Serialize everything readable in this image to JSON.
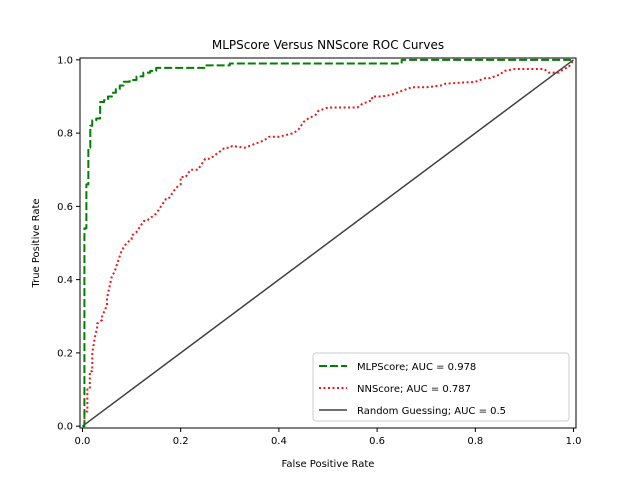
{
  "chart_data": {
    "type": "line",
    "title": "MLPScore Versus NNScore ROC Curves",
    "xlabel": "False Positive Rate",
    "ylabel": "True Positive Rate",
    "xlim": [
      -0.005,
      1.005
    ],
    "ylim": [
      -0.005,
      1.005
    ],
    "xticks": [
      "0.0",
      "0.2",
      "0.4",
      "0.6",
      "0.8",
      "1.0"
    ],
    "yticks": [
      "0.0",
      "0.2",
      "0.4",
      "0.6",
      "0.8",
      "1.0"
    ],
    "grid": false,
    "legend_position": "lower-right",
    "series": [
      {
        "name": "MLPScore; AUC = 0.978",
        "color": "#008000",
        "style": "dashed",
        "x": [
          0.0,
          0.004,
          0.004,
          0.008,
          0.008,
          0.012,
          0.012,
          0.016,
          0.016,
          0.02,
          0.02,
          0.028,
          0.028,
          0.036,
          0.036,
          0.044,
          0.044,
          0.052,
          0.052,
          0.06,
          0.06,
          0.068,
          0.068,
          0.076,
          0.076,
          0.084,
          0.084,
          0.096,
          0.096,
          0.11,
          0.11,
          0.124,
          0.124,
          0.138,
          0.138,
          0.15,
          0.15,
          0.25,
          0.25,
          0.3,
          0.3,
          0.65,
          0.65,
          1.0
        ],
        "y": [
          0.0,
          0.0,
          0.54,
          0.54,
          0.66,
          0.66,
          0.76,
          0.76,
          0.82,
          0.82,
          0.835,
          0.835,
          0.84,
          0.84,
          0.885,
          0.885,
          0.89,
          0.89,
          0.9,
          0.9,
          0.91,
          0.91,
          0.92,
          0.92,
          0.93,
          0.93,
          0.94,
          0.94,
          0.945,
          0.945,
          0.955,
          0.955,
          0.965,
          0.965,
          0.97,
          0.97,
          0.978,
          0.978,
          0.985,
          0.985,
          0.99,
          0.99,
          1.0,
          1.0
        ]
      },
      {
        "name": "NNScore; AUC = 0.787",
        "color": "#e41a1c",
        "style": "dotted",
        "x": [
          0.0,
          0.004,
          0.004,
          0.01,
          0.01,
          0.015,
          0.015,
          0.02,
          0.02,
          0.025,
          0.03,
          0.03,
          0.04,
          0.04,
          0.05,
          0.05,
          0.055,
          0.06,
          0.065,
          0.07,
          0.075,
          0.08,
          0.085,
          0.09,
          0.1,
          0.1,
          0.11,
          0.115,
          0.12,
          0.125,
          0.13,
          0.135,
          0.15,
          0.155,
          0.16,
          0.165,
          0.17,
          0.175,
          0.18,
          0.185,
          0.19,
          0.2,
          0.2,
          0.21,
          0.215,
          0.22,
          0.235,
          0.24,
          0.25,
          0.26,
          0.27,
          0.28,
          0.29,
          0.3,
          0.305,
          0.33,
          0.34,
          0.35,
          0.36,
          0.37,
          0.38,
          0.39,
          0.4,
          0.43,
          0.44,
          0.445,
          0.45,
          0.46,
          0.475,
          0.48,
          0.49,
          0.5,
          0.51,
          0.525,
          0.55,
          0.56,
          0.57,
          0.59,
          0.59,
          0.61,
          0.63,
          0.64,
          0.65,
          0.66,
          0.67,
          0.68,
          0.69,
          0.7,
          0.73,
          0.74,
          0.8,
          0.81,
          0.82,
          0.83,
          0.85,
          0.86,
          0.88,
          0.89,
          0.9,
          0.94,
          0.95,
          0.97,
          0.975,
          0.98,
          0.99,
          1.0
        ],
        "y": [
          0.0,
          0.0,
          0.04,
          0.04,
          0.1,
          0.1,
          0.15,
          0.15,
          0.2,
          0.24,
          0.27,
          0.28,
          0.29,
          0.3,
          0.33,
          0.35,
          0.38,
          0.41,
          0.42,
          0.44,
          0.46,
          0.48,
          0.49,
          0.5,
          0.51,
          0.52,
          0.53,
          0.54,
          0.55,
          0.56,
          0.56,
          0.565,
          0.58,
          0.59,
          0.6,
          0.61,
          0.62,
          0.62,
          0.63,
          0.64,
          0.65,
          0.66,
          0.68,
          0.68,
          0.69,
          0.7,
          0.7,
          0.71,
          0.73,
          0.73,
          0.74,
          0.75,
          0.76,
          0.76,
          0.765,
          0.76,
          0.765,
          0.77,
          0.775,
          0.78,
          0.79,
          0.79,
          0.79,
          0.8,
          0.81,
          0.82,
          0.83,
          0.84,
          0.85,
          0.86,
          0.865,
          0.87,
          0.87,
          0.87,
          0.87,
          0.87,
          0.88,
          0.89,
          0.9,
          0.9,
          0.905,
          0.91,
          0.915,
          0.92,
          0.925,
          0.925,
          0.925,
          0.925,
          0.93,
          0.935,
          0.94,
          0.945,
          0.95,
          0.95,
          0.96,
          0.97,
          0.975,
          0.975,
          0.975,
          0.975,
          0.965,
          0.965,
          0.97,
          0.975,
          0.98,
          1.0
        ]
      },
      {
        "name": "Random Guessing; AUC = 0.5",
        "color": "#404040",
        "style": "solid",
        "x": [
          0.0,
          1.0
        ],
        "y": [
          0.0,
          1.0
        ]
      }
    ]
  }
}
